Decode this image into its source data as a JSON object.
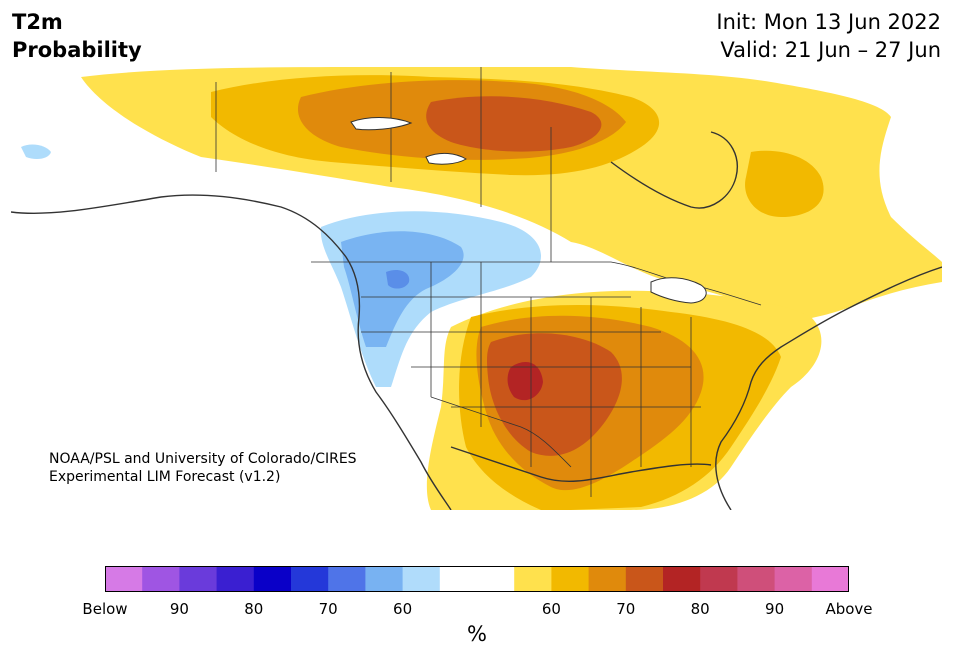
{
  "header": {
    "title_line1": "T2m",
    "title_line2": "Probability",
    "init": "Init: Mon 13 Jun 2022",
    "valid": "Valid: 21 Jun – 27 Jun"
  },
  "map": {
    "credit_line1": "NOAA/PSL and University of Colorado/CIRES",
    "credit_line2": "Experimental LIM Forecast (v1.2)",
    "colors": {
      "above_60": "#ffe14d",
      "above_65": "#f2b900",
      "above_70": "#e08a0c",
      "above_75": "#c9561a",
      "above_80": "#b32424",
      "below_60": "#aedcfb",
      "below_65": "#79b4f2",
      "below_70": "#5a8ee8",
      "land": "#ffffff",
      "border": "#333333"
    }
  },
  "colorbar": {
    "colors": [
      "#d67ae6",
      "#9f55e3",
      "#6a3bdb",
      "#3a1fd1",
      "#0a00c8",
      "#2438d9",
      "#4f74e8",
      "#78b2f2",
      "#b0dcfb",
      "#ffffff",
      "#ffffff",
      "#ffe14d",
      "#f2b900",
      "#e08a0c",
      "#c9561a",
      "#b32424",
      "#c0394f",
      "#cf4f7a",
      "#dc62a6",
      "#e879d7"
    ],
    "tick_labels": [
      "Below",
      "90",
      "80",
      "70",
      "60",
      "60",
      "70",
      "80",
      "90",
      "Above"
    ],
    "unit": "%"
  }
}
